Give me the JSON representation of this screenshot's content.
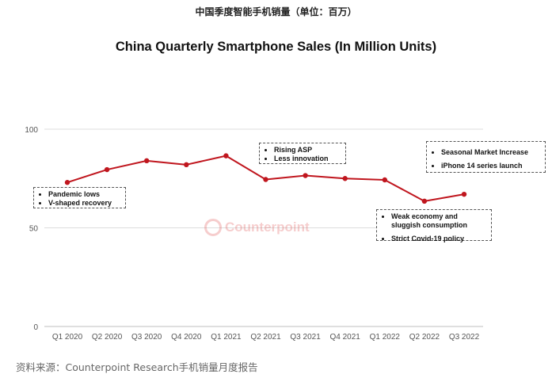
{
  "header": {
    "cn_title": "中国季度智能手机销量（单位：百万）"
  },
  "chart_data": {
    "type": "line",
    "title": "China Quarterly Smartphone Sales (In Million Units)",
    "categories": [
      "Q1 2020",
      "Q2 2020",
      "Q3 2020",
      "Q4 2020",
      "Q1 2021",
      "Q2 2021",
      "Q3 2021",
      "Q4 2021",
      "Q1 2022",
      "Q2 2022",
      "Q3 2022"
    ],
    "series": [
      {
        "name": "Sales",
        "values": [
          73,
          79.5,
          84,
          82,
          86.5,
          74.5,
          76.5,
          75,
          74.3,
          63.5,
          67
        ],
        "color": "#c0161e"
      }
    ],
    "yticks": [
      0,
      50,
      100
    ],
    "ylim": [
      0,
      100
    ],
    "xlabel": "",
    "ylabel": "",
    "grid": true,
    "annotations": [
      {
        "id": "ann-pandemic",
        "lines": [
          "Pandemic lows",
          "V-shaped recovery"
        ]
      },
      {
        "id": "ann-asp",
        "lines": [
          "Rising ASP",
          "Less innovation"
        ]
      },
      {
        "id": "ann-seasonal",
        "lines": [
          "Seasonal Market Increase",
          "iPhone 14 series launch"
        ]
      },
      {
        "id": "ann-weak",
        "lines": [
          "Weak economy and sluggish consumption",
          "Strict Covid-19 policy"
        ]
      }
    ]
  },
  "watermark": {
    "name": "Counterpoint"
  },
  "footer": {
    "source": "资料来源：Counterpoint Research手机销量月度报告"
  }
}
